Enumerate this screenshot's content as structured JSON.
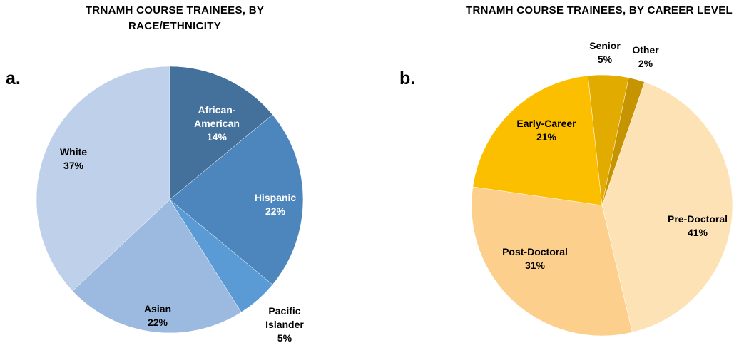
{
  "chart_data": [
    {
      "type": "pie",
      "panel_label": "a.",
      "title": "TRNAMH COURSE TRAINEES, BY RACE/ETHNICITY",
      "title_lines": [
        "TRNAMH COURSE TRAINEES, BY",
        "RACE/ETHNICITY"
      ],
      "slices": [
        {
          "name": "African-American",
          "label_lines": [
            "African-",
            "American"
          ],
          "value": 14,
          "pct_label": "14%",
          "color": "#44709c",
          "text_color": "#ffffff"
        },
        {
          "name": "Hispanic",
          "label_lines": [
            "Hispanic"
          ],
          "value": 22,
          "pct_label": "22%",
          "color": "#4c86bd",
          "text_color": "#ffffff"
        },
        {
          "name": "Pacific Islander",
          "label_lines": [
            "Pacific",
            "Islander"
          ],
          "value": 5,
          "pct_label": "5%",
          "color": "#5b9bd5",
          "text_color": "#000000"
        },
        {
          "name": "Asian",
          "label_lines": [
            "Asian"
          ],
          "value": 22,
          "pct_label": "22%",
          "color": "#9cb9df",
          "text_color": "#000000"
        },
        {
          "name": "White",
          "label_lines": [
            "White"
          ],
          "value": 37,
          "pct_label": "37%",
          "color": "#bed0ea",
          "text_color": "#000000"
        }
      ]
    },
    {
      "type": "pie",
      "panel_label": "b.",
      "title": "TRNAMH COURSE TRAINEES, BY CAREER LEVEL",
      "title_lines": [
        "TRNAMH COURSE TRAINEES, BY CAREER LEVEL"
      ],
      "slices": [
        {
          "name": "Pre-Doctoral",
          "label_lines": [
            "Pre-Doctoral"
          ],
          "value": 41,
          "pct_label": "41%",
          "color": "#fde2b6",
          "text_color": "#000000"
        },
        {
          "name": "Post-Doctoral",
          "label_lines": [
            "Post-Doctoral"
          ],
          "value": 31,
          "pct_label": "31%",
          "color": "#fcd08c",
          "text_color": "#000000"
        },
        {
          "name": "Early-Career",
          "label_lines": [
            "Early-Career"
          ],
          "value": 21,
          "pct_label": "21%",
          "color": "#fcbf00",
          "text_color": "#000000"
        },
        {
          "name": "Senior",
          "label_lines": [
            "Senior"
          ],
          "value": 5,
          "pct_label": "5%",
          "color": "#e2ab00",
          "text_color": "#000000"
        },
        {
          "name": "Other",
          "label_lines": [
            "Other"
          ],
          "value": 2,
          "pct_label": "2%",
          "color": "#c69400",
          "text_color": "#000000"
        }
      ]
    }
  ]
}
